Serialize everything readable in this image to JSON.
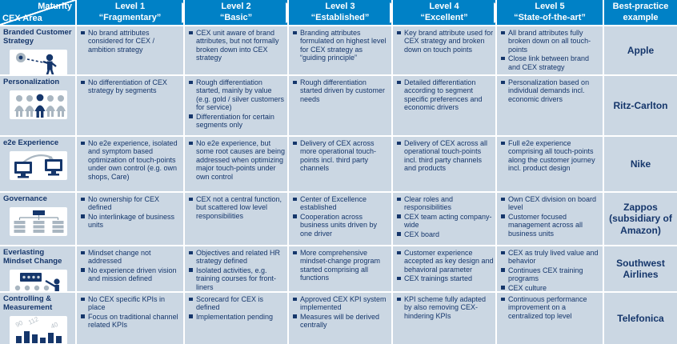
{
  "colors": {
    "blue": "#0081c6",
    "navy": "#15366b",
    "cellbg": "#cbd7e3",
    "gray": "#a9b6c1"
  },
  "header": {
    "corner": {
      "top": "Maturity",
      "bottom": "CEX Area"
    },
    "levels": [
      {
        "label": "Level 1",
        "sub": "“Fragmentary”"
      },
      {
        "label": "Level 2",
        "sub": "“Basic”"
      },
      {
        "label": "Level 3",
        "sub": "“Established”"
      },
      {
        "label": "Level 4",
        "sub": "“Excellent”"
      },
      {
        "label": "Level 5",
        "sub": "“State-of-the-art”"
      }
    ],
    "best_practice": "Best-practice example"
  },
  "rows": [
    {
      "area": "Branded Customer Strategy",
      "icon": "person-ball-icon",
      "levels": [
        [
          "No brand attributes considered for CEX / ambition strategy"
        ],
        [
          "CEX unit aware of brand attributes, but not formally broken down into CEX strategy"
        ],
        [
          "Branding attributes formulated on highest level for CEX strategy as “guiding principle”"
        ],
        [
          "Key brand attribute used for CEX strategy and broken down on touch points"
        ],
        [
          "All brand attributes fully broken down on all touch-points",
          "Close link between brand and CEX strategy"
        ]
      ],
      "example": "Apple"
    },
    {
      "area": "Personalization",
      "icon": "people-group-icon",
      "levels": [
        [
          "No differentiation of CEX strategy by segments"
        ],
        [
          "Rough differentiation started, mainly by value (e.g. gold / silver customers for service)",
          "Differentiation for certain segments only"
        ],
        [
          "Rough differentiation started driven by customer needs"
        ],
        [
          "Detailed differentiation according to segment specific preferences and economic drivers"
        ],
        [
          "Personalization based on individual demands incl. economic drivers"
        ]
      ],
      "example": "Ritz-Carlton"
    },
    {
      "area": "e2e Experience",
      "icon": "monitors-arrow-icon",
      "levels": [
        [
          "No e2e experience, isolated and symptom based optimization of touch-points under own control (e.g. own shops, Care)"
        ],
        [
          "No e2e experience, but some root causes are being addressed when optimizing major touch-points under own control"
        ],
        [
          "Delivery of CEX across more operational touch-points incl. third party channels"
        ],
        [
          "Delivery of CEX across all operational touch-points incl. third party channels and products"
        ],
        [
          "Full e2e experience comprising all touch-points along the customer journey incl. product design"
        ]
      ],
      "example": "Nike"
    },
    {
      "area": "Governance",
      "icon": "org-chart-icon",
      "levels": [
        [
          "No ownership for CEX defined",
          "No interlinkage of business units"
        ],
        [
          "CEX not a central function, but scattered low level responsibilities"
        ],
        [
          "Center of Excellence established",
          "Cooperation across business units driven by one driver"
        ],
        [
          "Clear roles and responsibilities",
          "CEX team acting company-wide",
          "CEX board"
        ],
        [
          "Own CEX division on board level",
          "Customer focused management across all business units"
        ]
      ],
      "example": "Zappos (subsidiary of Amazon)"
    },
    {
      "area": "Everlasting Mindset Change",
      "icon": "presenter-board-icon",
      "levels": [
        [
          "Mindset change not addressed",
          "No experience driven vision and mission defined"
        ],
        [
          "Objectives and related HR strategy defined",
          "Isolated activities, e.g. training courses for front-liners"
        ],
        [
          "More comprehensive mindset-change program started comprising all functions"
        ],
        [
          "Customer experience accepted as key design and behavioral parameter",
          "CEX trainings started"
        ],
        [
          "CEX as truly lived value and behavior",
          "Continues CEX training programs",
          "CEX culture"
        ]
      ],
      "example": "Southwest Airlines"
    },
    {
      "area": "Controlling & Measurement",
      "icon": "bar-chart-icon",
      "levels": [
        [
          "No CEX specific KPIs in place",
          "Focus on traditional channel related KPIs"
        ],
        [
          "Scorecard for CEX is defined",
          "Implementation pending"
        ],
        [
          "Approved CEX KPI system implemented",
          "Measures will be derived centrally"
        ],
        [
          "KPI scheme fully adapted by also removing CEX-hindering KPIs"
        ],
        [
          "Continuous performance improvement on a centralized top level"
        ]
      ],
      "example": "Telefonica"
    }
  ]
}
